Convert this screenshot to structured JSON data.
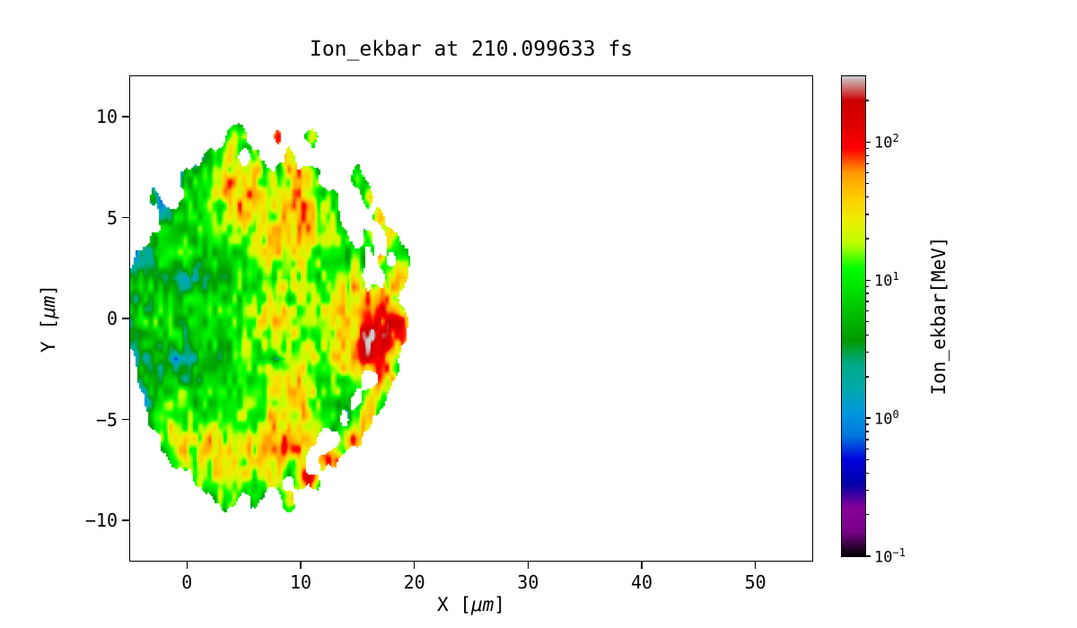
{
  "chart_data": {
    "type": "heatmap",
    "title": "Ion_ekbar at 210.099633 fs",
    "time_fs": 210.099633,
    "xlabel": "X [μm]",
    "ylabel": "Y [μm]",
    "colorbar_label": "Ion_ekbar[MeV]",
    "xlim": [
      -5,
      55
    ],
    "ylim": [
      -12,
      12
    ],
    "xticks": [
      0,
      10,
      20,
      30,
      40,
      50
    ],
    "yticks": [
      10,
      5,
      0,
      -5,
      -10
    ],
    "color_scale": "log10",
    "clim_mev": [
      0.1,
      300
    ],
    "colorbar_tick_exponents": [
      -1,
      0,
      1,
      2
    ],
    "colormap": "nipy_spectral",
    "colormap_stops": [
      [
        0.0,
        "#000000"
      ],
      [
        0.05,
        "#770088"
      ],
      [
        0.1,
        "#880099"
      ],
      [
        0.15,
        "#0000aa"
      ],
      [
        0.2,
        "#0000dd"
      ],
      [
        0.25,
        "#0077dd"
      ],
      [
        0.3,
        "#0099dd"
      ],
      [
        0.35,
        "#00aaaa"
      ],
      [
        0.4,
        "#00aa88"
      ],
      [
        0.45,
        "#009900"
      ],
      [
        0.5,
        "#00bb00"
      ],
      [
        0.55,
        "#00dd00"
      ],
      [
        0.6,
        "#00ff00"
      ],
      [
        0.65,
        "#bbff00"
      ],
      [
        0.7,
        "#eeee00"
      ],
      [
        0.75,
        "#ffcc00"
      ],
      [
        0.8,
        "#ff9900"
      ],
      [
        0.85,
        "#ff0000"
      ],
      [
        0.9,
        "#dd0000"
      ],
      [
        0.95,
        "#cc0000"
      ],
      [
        1.0,
        "#cccccc"
      ]
    ],
    "grid": {
      "units": "MeV",
      "x_start": -5,
      "x_step": 1,
      "y_start": 10,
      "y_step": -1,
      "values": [
        [
          0,
          0,
          0,
          0,
          0,
          0,
          0,
          0,
          0,
          0,
          0,
          0,
          0,
          0,
          0,
          0,
          0,
          0,
          0,
          0,
          0,
          0,
          0,
          0,
          0,
          0,
          0,
          0,
          0
        ],
        [
          0,
          0,
          0,
          0,
          0,
          0,
          0,
          0,
          0,
          25,
          15,
          0,
          0,
          90,
          0,
          0,
          30,
          0,
          0,
          0,
          0,
          0,
          0,
          0,
          0,
          0,
          0,
          0,
          0
        ],
        [
          0,
          0,
          0,
          0,
          0,
          0,
          0,
          8,
          15,
          35,
          0,
          20,
          0,
          0,
          50,
          0,
          0,
          0,
          0,
          0,
          0,
          0,
          0,
          0,
          0,
          0,
          0,
          0,
          0
        ],
        [
          0,
          0,
          0,
          0,
          0,
          6,
          10,
          18,
          28,
          45,
          55,
          35,
          22,
          15,
          25,
          80,
          30,
          0,
          0,
          0,
          25,
          0,
          0,
          0,
          0,
          0,
          0,
          0,
          0
        ],
        [
          0,
          0,
          4,
          0,
          0,
          8,
          12,
          14,
          22,
          40,
          60,
          45,
          28,
          18,
          22,
          55,
          35,
          15,
          8,
          0,
          0,
          35,
          0,
          0,
          0,
          0,
          0,
          0,
          0
        ],
        [
          0,
          0,
          0,
          4,
          6,
          9,
          11,
          12,
          16,
          25,
          35,
          30,
          22,
          25,
          35,
          60,
          35,
          18,
          10,
          0,
          0,
          0,
          45,
          0,
          0,
          0,
          0,
          0,
          0
        ],
        [
          0,
          0,
          3,
          5,
          7,
          9,
          8,
          7,
          10,
          13,
          18,
          22,
          28,
          32,
          26,
          35,
          28,
          16,
          11,
          7,
          0,
          25,
          0,
          55,
          0,
          0,
          0,
          0,
          0
        ],
        [
          0,
          3,
          4,
          6,
          7,
          7,
          6,
          5,
          7,
          9,
          11,
          14,
          18,
          22,
          18,
          22,
          20,
          16,
          13,
          9,
          15,
          0,
          30,
          0,
          25,
          0,
          0,
          0,
          0
        ],
        [
          3,
          4,
          5,
          6,
          4,
          1.2,
          2,
          4,
          5,
          6,
          7,
          7,
          9,
          11,
          9,
          11,
          13,
          14,
          16,
          22,
          30,
          0,
          0,
          35,
          55,
          0,
          0,
          0,
          0
        ],
        [
          4,
          5,
          6,
          7,
          6,
          6,
          7,
          7,
          8,
          9,
          10,
          12,
          18,
          28,
          14,
          12,
          14,
          18,
          26,
          40,
          55,
          75,
          90,
          45,
          0,
          0,
          0,
          0,
          0
        ],
        [
          5,
          6,
          7,
          8,
          8,
          7,
          8,
          9,
          10,
          10,
          12,
          15,
          28,
          38,
          18,
          14,
          17,
          22,
          32,
          48,
          70,
          160,
          120,
          80,
          55,
          0,
          0,
          0,
          0
        ],
        [
          4,
          5,
          6,
          7,
          7,
          6,
          7,
          8,
          9,
          10,
          12,
          14,
          24,
          34,
          16,
          13,
          15,
          20,
          28,
          44,
          62,
          250,
          140,
          85,
          60,
          0,
          0,
          0,
          0
        ],
        [
          0,
          3,
          4,
          5,
          1.0,
          1.5,
          3,
          5,
          6,
          7,
          8,
          9,
          12,
          0.4,
          12,
          28,
          24,
          18,
          22,
          32,
          45,
          85,
          65,
          35,
          0,
          0,
          0,
          0,
          0
        ],
        [
          0,
          4,
          5,
          6,
          6,
          5,
          6,
          7,
          8,
          8,
          10,
          12,
          15,
          20,
          26,
          35,
          20,
          14,
          12,
          14,
          24,
          0,
          40,
          28,
          0,
          0,
          0,
          0,
          0
        ],
        [
          0,
          0,
          5,
          8,
          10,
          8,
          8,
          10,
          12,
          14,
          12,
          14,
          18,
          24,
          30,
          24,
          17,
          12,
          9,
          7,
          0,
          30,
          24,
          0,
          0,
          0,
          0,
          0,
          0
        ],
        [
          0,
          0,
          8,
          14,
          20,
          14,
          12,
          15,
          20,
          24,
          18,
          17,
          24,
          30,
          40,
          60,
          32,
          18,
          9,
          0,
          28,
          40,
          0,
          0,
          0,
          0,
          0,
          0,
          0
        ],
        [
          0,
          0,
          0,
          18,
          28,
          24,
          20,
          24,
          30,
          34,
          28,
          24,
          30,
          40,
          50,
          68,
          38,
          0,
          0,
          48,
          58,
          0,
          0,
          0,
          0,
          0,
          0,
          0,
          0
        ],
        [
          0,
          0,
          0,
          0,
          22,
          28,
          30,
          34,
          38,
          40,
          34,
          28,
          34,
          44,
          38,
          28,
          0,
          55,
          75,
          0,
          0,
          0,
          0,
          0,
          0,
          0,
          0,
          0,
          0
        ],
        [
          0,
          0,
          0,
          0,
          0,
          0,
          18,
          28,
          34,
          28,
          22,
          18,
          24,
          28,
          0,
          38,
          85,
          0,
          0,
          0,
          0,
          0,
          0,
          0,
          0,
          0,
          0,
          0,
          0
        ],
        [
          0,
          0,
          0,
          0,
          0,
          0,
          0,
          0,
          14,
          18,
          0,
          9,
          0,
          0,
          55,
          0,
          0,
          0,
          0,
          0,
          0,
          0,
          0,
          0,
          0,
          0,
          0,
          0,
          0
        ],
        [
          0,
          0,
          0,
          0,
          0,
          0,
          0,
          0,
          0,
          0,
          0,
          0,
          0,
          0,
          0,
          0,
          0,
          0,
          0,
          0,
          0,
          0,
          0,
          0,
          0,
          0,
          0,
          0,
          0
        ]
      ]
    }
  }
}
